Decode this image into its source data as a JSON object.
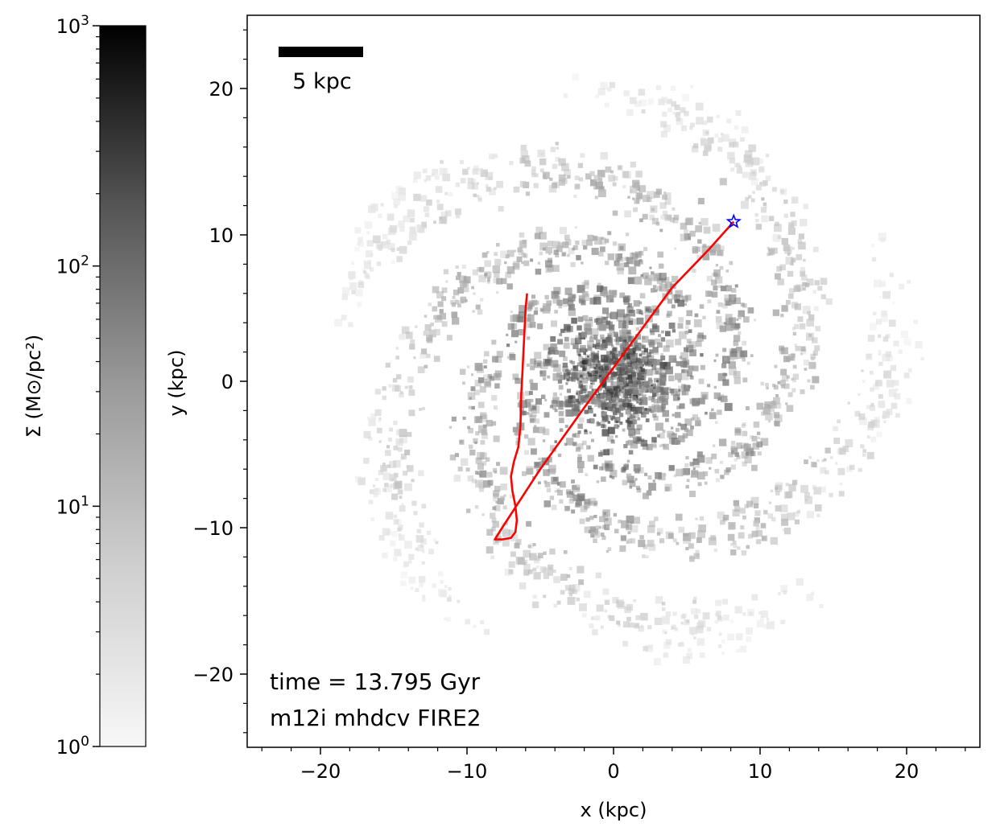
{
  "chart_data": {
    "type": "heatmap",
    "title": "",
    "xlabel": "x (kpc)",
    "ylabel": "y (kpc)",
    "xlim": [
      -25,
      25
    ],
    "ylim": [
      -25,
      25
    ],
    "xticks": [
      -20,
      -10,
      0,
      10,
      20
    ],
    "yticks": [
      -20,
      -10,
      0,
      10,
      20
    ],
    "xtick_labels": [
      "−20",
      "−10",
      "0",
      "10",
      "20"
    ],
    "ytick_labels": [
      "−20",
      "−10",
      "0",
      "10",
      "20"
    ],
    "grid": false,
    "colorbar": {
      "label": "Σ (M⊙/pc²)",
      "scale": "log",
      "colormap": "gray_r",
      "vmin": 1,
      "vmax": 1000,
      "tick_values": [
        1,
        10,
        100,
        1000
      ],
      "tick_labels": [
        {
          "base": "10",
          "exp": "0"
        },
        {
          "base": "10",
          "exp": "1"
        },
        {
          "base": "10",
          "exp": "2"
        },
        {
          "base": "10",
          "exp": "3"
        }
      ],
      "placement": "left"
    },
    "scale_bar": {
      "label": "5 kpc",
      "length_kpc": 5
    },
    "annotations": [
      "time = 13.795 Gyr",
      "m12i mhdcv FIRE2"
    ],
    "series": [
      {
        "kind": "line",
        "color": "#ff0000",
        "x": [
          -5.9,
          -6.0,
          -6.1,
          -6.2,
          -6.3,
          -6.35,
          -6.5,
          -6.8,
          -7.0,
          -6.9,
          -6.7,
          -6.6,
          -6.7,
          -7.0,
          -7.6,
          -8.1,
          -7.6,
          -5.0,
          -2.0,
          1.0,
          4.0,
          6.5,
          8.2
        ],
        "y": [
          6.0,
          5.0,
          3.0,
          1.0,
          -1.0,
          -3.0,
          -4.5,
          -5.5,
          -6.5,
          -7.5,
          -8.5,
          -9.5,
          -10.3,
          -10.7,
          -10.8,
          -10.8,
          -10.0,
          -6.0,
          -1.8,
          2.3,
          6.4,
          9.0,
          10.9
        ]
      }
    ],
    "markers": [
      {
        "kind": "star",
        "color": "#0000ff",
        "x": 8.2,
        "y": 10.9
      }
    ],
    "density_map": "grayscale gas surface density of a multi-armed spiral galaxy centered near (0, 0), extending to roughly 20 kpc"
  }
}
